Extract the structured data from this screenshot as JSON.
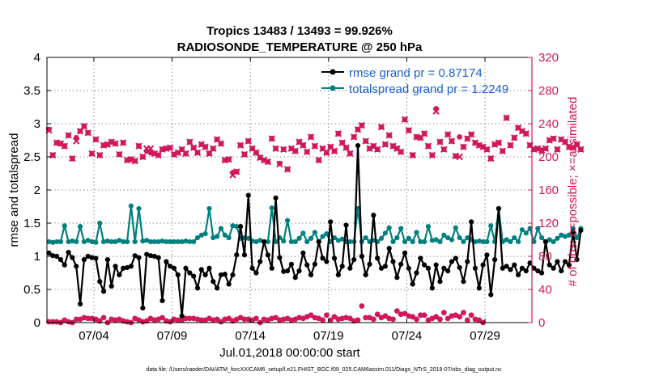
{
  "colors": {
    "rmse": "#000000",
    "spread": "#00807f",
    "obs": "#d1185a",
    "legend_text": "#1a5fd6",
    "axis": "#000000"
  },
  "chart_data": {
    "type": "line",
    "title_line1": "Tropics 13483 / 13493 = 99.926%",
    "title_line2": "RADIOSONDE_TEMPERATURE @ 250 hPa",
    "xlabel": "Jul.01,2018 00:00:00 start",
    "ylabel_left": "rmse and totalspread",
    "ylabel_right": "# of obs: o=possible; ×=assimilated",
    "footer": "data file: /Users/raeder/DAI/ATM_forcXX/CAM6_setup/f.e21.FHIST_BGC.f09_025.CAM6assim.011/Diags_NTrS_2018-07/obs_diag_output.nc",
    "xlim": [
      1,
      32
    ],
    "ylim_left": [
      0,
      4
    ],
    "ylim_right": [
      0,
      320
    ],
    "x_ticks": [
      4,
      9,
      14,
      19,
      24,
      29
    ],
    "x_tick_labels": [
      "07/04",
      "07/09",
      "07/14",
      "07/19",
      "07/24",
      "07/29"
    ],
    "y_left_ticks": [
      "0",
      "0.5",
      "1",
      "1.5",
      "2",
      "2.5",
      "3",
      "3.5",
      "4"
    ],
    "y_right_ticks": [
      "0",
      "40",
      "80",
      "120",
      "160",
      "200",
      "240",
      "280",
      "320"
    ],
    "legend": [
      {
        "name": "rmse grand pr = 0.87174",
        "series": "rmse"
      },
      {
        "name": "totalspread grand pr = 1.2249",
        "series": "spread"
      }
    ],
    "x_start": 1.125,
    "x_step": 0.25,
    "series": [
      {
        "name": "rmse",
        "values": [
          1.05,
          1.01,
          1.0,
          0.95,
          0.87,
          1.06,
          0.98,
          0.85,
          0.28,
          0.95,
          1.0,
          0.98,
          0.97,
          0.62,
          0.47,
          0.95,
          0.55,
          0.85,
          0.72,
          0.82,
          0.83,
          0.85,
          1.01,
          0.98,
          0.22,
          1.03,
          1.01,
          1.0,
          0.98,
          0.33,
          0.92,
          0.85,
          0.82,
          0.72,
          0.1,
          0.82,
          0.75,
          0.7,
          0.52,
          0.8,
          0.72,
          0.82,
          0.62,
          0.52,
          0.72,
          0.73,
          0.58,
          0.72,
          1.02,
          1.45,
          1.02,
          1.92,
          0.82,
          0.75,
          0.92,
          1.22,
          1.02,
          0.82,
          1.88,
          0.98,
          0.77,
          0.78,
          0.88,
          0.68,
          0.78,
          1.05,
          0.87,
          0.72,
          0.88,
          1.22,
          0.97,
          0.92,
          1.52,
          0.97,
          0.72,
          0.85,
          1.47,
          0.82,
          0.95,
          2.67,
          1.0,
          0.72,
          0.88,
          1.62,
          0.97,
          0.82,
          0.85,
          1.12,
          0.92,
          0.68,
          0.88,
          1.05,
          0.82,
          0.58,
          0.75,
          0.97,
          0.87,
          0.82,
          0.52,
          0.87,
          0.62,
          0.82,
          0.78,
          0.92,
          0.97,
          0.83,
          0.62,
          0.92,
          1.52,
          0.82,
          0.52,
          0.87,
          1.02,
          0.42,
          0.95,
          1.72,
          0.82,
          0.85,
          0.8,
          0.87,
          0.72,
          0.82,
          0.78,
          0.9,
          0.82,
          0.78,
          0.75,
          1.22,
          0.87,
          0.82,
          0.92,
          0.78,
          0.92,
          0.87,
          1.37,
          0.95,
          1.39
        ]
      },
      {
        "name": "spread",
        "values": [
          1.22,
          1.21,
          1.22,
          1.22,
          1.46,
          1.22,
          1.23,
          1.22,
          1.45,
          1.22,
          1.24,
          1.22,
          1.21,
          1.5,
          1.22,
          1.23,
          1.22,
          1.22,
          1.24,
          1.22,
          1.22,
          1.76,
          1.22,
          1.72,
          1.23,
          1.24,
          1.22,
          1.22,
          1.22,
          1.23,
          1.22,
          1.22,
          1.22,
          1.22,
          1.22,
          1.23,
          1.22,
          1.22,
          1.28,
          1.32,
          1.34,
          1.72,
          1.28,
          1.3,
          1.42,
          1.32,
          1.28,
          1.46,
          1.45,
          1.27,
          1.28,
          1.27,
          1.23,
          1.22,
          1.24,
          1.22,
          1.22,
          1.73,
          1.22,
          1.28,
          1.23,
          1.54,
          1.22,
          1.22,
          1.27,
          1.35,
          1.22,
          1.27,
          1.36,
          1.22,
          1.3,
          1.34,
          1.22,
          1.28,
          1.24,
          1.26,
          1.22,
          1.22,
          1.22,
          1.72,
          1.22,
          1.28,
          1.22,
          1.24,
          1.22,
          1.27,
          1.35,
          1.43,
          1.22,
          1.28,
          1.42,
          1.22,
          1.27,
          1.22,
          1.36,
          1.22,
          1.22,
          1.45,
          1.24,
          1.25,
          1.22,
          1.32,
          1.28,
          1.25,
          1.43,
          1.28,
          1.22,
          1.28,
          1.25,
          1.22,
          1.23,
          1.22,
          1.22,
          1.46,
          1.22,
          1.72,
          1.22,
          1.25,
          1.22,
          1.28,
          1.22,
          1.4,
          1.35,
          1.42,
          1.22,
          1.42,
          1.28,
          1.22,
          1.25,
          1.22,
          1.27,
          1.32,
          1.3,
          1.32,
          1.42,
          1.28,
          1.42
        ]
      },
      {
        "name": "obs_possible",
        "values": [
          233,
          202,
          217,
          216,
          213,
          226,
          198,
          223,
          231,
          237,
          229,
          204,
          221,
          202,
          214,
          215,
          218,
          216,
          203,
          217,
          196,
          197,
          195,
          213,
          200,
          207,
          205,
          204,
          202,
          209,
          210,
          211,
          203,
          205,
          209,
          204,
          218,
          211,
          205,
          215,
          212,
          204,
          210,
          221,
          216,
          196,
          197,
          181,
          182,
          214,
          203,
          219,
          210,
          205,
          199,
          196,
          194,
          222,
          210,
          192,
          209,
          185,
          210,
          207,
          218,
          214,
          206,
          224,
          213,
          196,
          210,
          205,
          212,
          207,
          228,
          217,
          211,
          204,
          224,
          233,
          238,
          219,
          210,
          213,
          209,
          236,
          215,
          226,
          213,
          210,
          206,
          245,
          232,
          202,
          224,
          223,
          228,
          213,
          202,
          258,
          218,
          209,
          227,
          219,
          201,
          224,
          212,
          222,
          227,
          217,
          214,
          212,
          209,
          198,
          215,
          217,
          207,
          247,
          214,
          223,
          235,
          231,
          228,
          214,
          209,
          210,
          208,
          210,
          220,
          222,
          209,
          221,
          218,
          212,
          211,
          215,
          209
        ]
      },
      {
        "name": "obs_assimilated",
        "values": [
          232,
          202,
          217,
          216,
          213,
          226,
          198,
          219,
          231,
          237,
          229,
          204,
          221,
          202,
          214,
          215,
          218,
          216,
          203,
          217,
          196,
          197,
          195,
          213,
          200,
          210,
          210,
          204,
          202,
          209,
          210,
          211,
          203,
          205,
          209,
          204,
          218,
          211,
          205,
          215,
          212,
          204,
          210,
          221,
          216,
          196,
          197,
          178,
          182,
          214,
          203,
          219,
          210,
          205,
          199,
          196,
          194,
          222,
          210,
          191,
          209,
          185,
          210,
          207,
          218,
          214,
          206,
          224,
          213,
          196,
          210,
          205,
          212,
          207,
          228,
          217,
          211,
          204,
          224,
          233,
          238,
          219,
          210,
          213,
          209,
          236,
          215,
          226,
          213,
          210,
          206,
          245,
          232,
          202,
          224,
          223,
          228,
          213,
          202,
          255,
          218,
          209,
          227,
          219,
          201,
          200,
          212,
          222,
          227,
          217,
          214,
          212,
          209,
          198,
          215,
          217,
          207,
          247,
          214,
          223,
          235,
          231,
          228,
          214,
          209,
          210,
          208,
          210,
          220,
          222,
          209,
          221,
          218,
          212,
          211,
          215,
          209
        ]
      },
      {
        "name": "obs_possible_low",
        "values": [
          1,
          1,
          1,
          0,
          3,
          1,
          0,
          4,
          4,
          6,
          5,
          5,
          4,
          2,
          6,
          0,
          4,
          3,
          4,
          2,
          1,
          0,
          5,
          3,
          1,
          2,
          5,
          3,
          4,
          6,
          2,
          1,
          4,
          3,
          3,
          5,
          5,
          5,
          4,
          3,
          3,
          5,
          3,
          4,
          1,
          4,
          5,
          2,
          4,
          6,
          4,
          4,
          3,
          5,
          0,
          4,
          3,
          5,
          6,
          3,
          4,
          5,
          3,
          4,
          6,
          5,
          7,
          9,
          6,
          5,
          3,
          9,
          3,
          7,
          4,
          5,
          6,
          5,
          2,
          3,
          20,
          6,
          6,
          4,
          10,
          6,
          8,
          5,
          4,
          14,
          10,
          11,
          8,
          7,
          4,
          9,
          9,
          3,
          5,
          7,
          4,
          12,
          5,
          8,
          9,
          7,
          12,
          3,
          9,
          4,
          3,
          0
        ]
      }
    ]
  }
}
